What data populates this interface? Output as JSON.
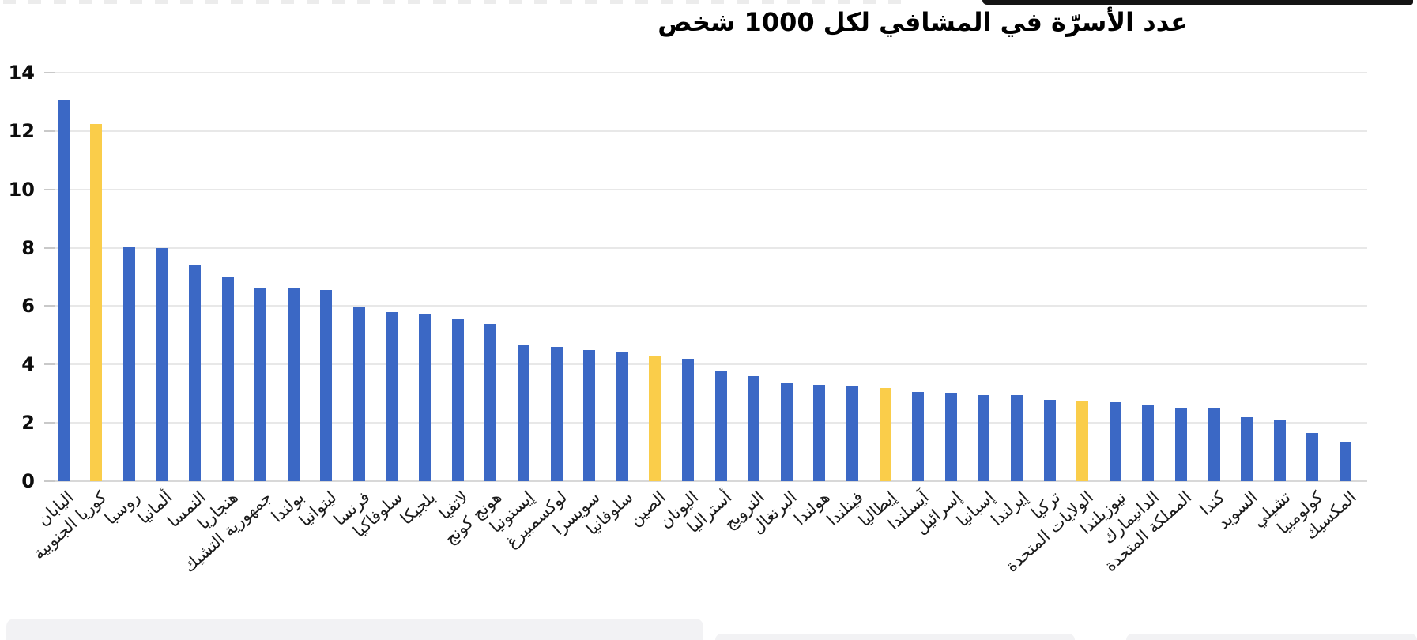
{
  "page": {
    "title": "عدد الأسرّة في المشافي لكل 1000 شخص"
  },
  "colors": {
    "bar_blue": "#3B68C5",
    "bar_yellow": "#FACD4A",
    "gridline": "#E8E8E8",
    "baseline": "#D8D8D8",
    "tick": "#C9C9C9",
    "text": "#1B1B1B"
  },
  "chart_data": {
    "type": "bar",
    "title": "عدد الأسرّة في المشافي لكل 1000 شخص",
    "direction": "rtl",
    "xlabel": "",
    "ylabel": "",
    "ylim": [
      0,
      14
    ],
    "y_ticks": [
      14,
      12,
      10,
      8,
      6,
      4,
      2,
      0
    ],
    "grid": "horizontal",
    "legend": "none",
    "categories": [
      "اليابان",
      "كوريا الجنوبية",
      "روسيا",
      "ألمانيا",
      "النمسا",
      "هنجاريا",
      "جمهورية التشيك",
      "بولندا",
      "ليتوانيا",
      "فرنسا",
      "سلوفاكيا",
      "بلجيكا",
      "لاتفيا",
      "هونج كونج",
      "إيستونيا",
      "لوكسمبيرغ",
      "سويسرا",
      "سلوفانيا",
      "الصين",
      "اليونان",
      "أستراليا",
      "النرويج",
      "البرتغال",
      "هولندا",
      "فينلندا",
      "إيطاليا",
      "آيسلندا",
      "إسرائيل",
      "إسبانيا",
      "إيرلندا",
      "تركيا",
      "الولايات المتحدة",
      "نيوزيلندا",
      "الدانيمارك",
      "المملكة المتحدة",
      "كندا",
      "السويد",
      "تشيلي",
      "كولومبيا",
      "المكسيك"
    ],
    "values": [
      13.05,
      12.25,
      8.05,
      8.0,
      7.4,
      7.0,
      6.6,
      6.6,
      6.55,
      5.95,
      5.8,
      5.75,
      5.55,
      5.4,
      4.65,
      4.6,
      4.5,
      4.45,
      4.3,
      4.2,
      3.8,
      3.6,
      3.35,
      3.3,
      3.25,
      3.2,
      3.05,
      3.0,
      2.95,
      2.95,
      2.8,
      2.75,
      2.7,
      2.6,
      2.5,
      2.5,
      2.2,
      2.1,
      1.65,
      1.35
    ],
    "highlighted_indices": [
      1,
      18,
      25,
      31
    ]
  }
}
